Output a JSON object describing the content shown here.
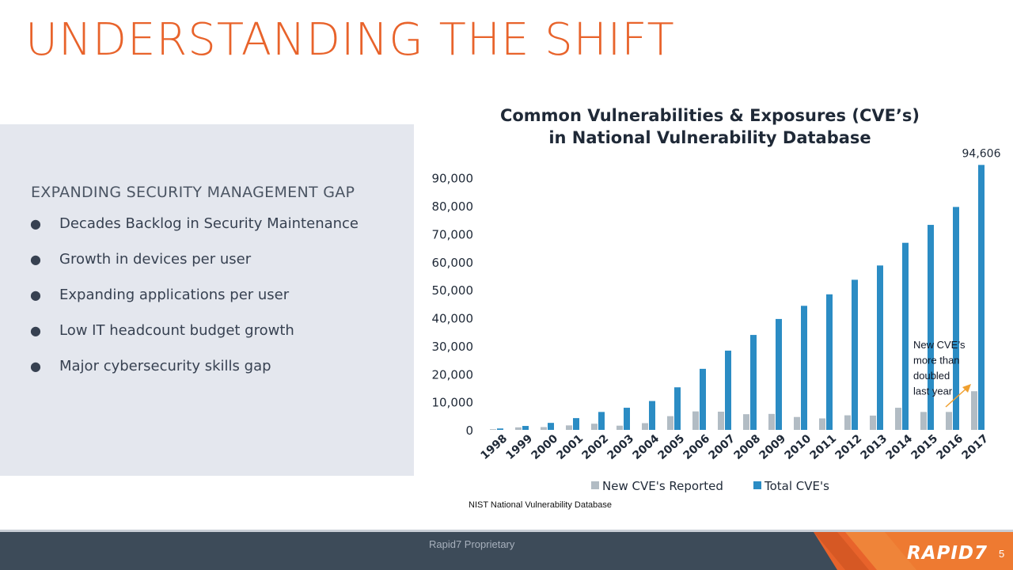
{
  "slide": {
    "title": "UNDERSTANDING THE SHIFT",
    "heading": "EXPANDING SECURITY MANAGEMENT GAP",
    "bullets": [
      "Decades Backlog in Security Maintenance",
      "Growth in devices per user",
      "Expanding applications per user",
      "Low IT headcount budget growth",
      "Major cybersecurity skills gap"
    ],
    "bullet_symbol": "●",
    "source": "NIST National Vulnerability Database",
    "footer_text": "Rapid7 Proprietary",
    "brand": "RAPID7",
    "page_number": "5"
  },
  "colors": {
    "accent": "#e8632b",
    "panel": "#e4e7ee",
    "footer": "#3d4b59",
    "series_total": "#2b8cc4",
    "series_new": "#b2bcc4",
    "annotation_arrow": "#f0a030"
  },
  "chart_data": {
    "type": "bar",
    "title_lines": [
      "Common Vulnerabilities & Exposures (CVE’s)",
      "in National Vulnerability Database"
    ],
    "categories": [
      "1998",
      "1999",
      "2000",
      "2001",
      "2002",
      "2003",
      "2004",
      "2005",
      "2006",
      "2007",
      "2008",
      "2009",
      "2010",
      "2011",
      "2012",
      "2013",
      "2014",
      "2015",
      "2016",
      "2017"
    ],
    "series": [
      {
        "name": "New CVE's Reported",
        "color": "#b2bcc4",
        "values": [
          250,
          900,
          1000,
          1600,
          2200,
          1500,
          2400,
          4900,
          6600,
          6500,
          5600,
          5700,
          4600,
          4100,
          5200,
          5100,
          7900,
          6400,
          6400,
          13800
        ]
      },
      {
        "name": "Total CVE's",
        "color": "#2b8cc4",
        "values": [
          500,
          1400,
          2500,
          4200,
          6400,
          7900,
          10300,
          15200,
          21800,
          28300,
          33900,
          39600,
          44300,
          48400,
          53600,
          58700,
          66800,
          73200,
          79600,
          94606
        ]
      }
    ],
    "yticks": [
      "0",
      "10,000",
      "20,000",
      "30,000",
      "40,000",
      "50,000",
      "60,000",
      "70,000",
      "80,000",
      "90,000"
    ],
    "ylim": [
      0,
      95000
    ],
    "data_label": "94,606",
    "annotation": [
      "New CVE’s",
      "more than",
      "doubled",
      "last year"
    ],
    "legend": "bottom",
    "grid": false
  }
}
